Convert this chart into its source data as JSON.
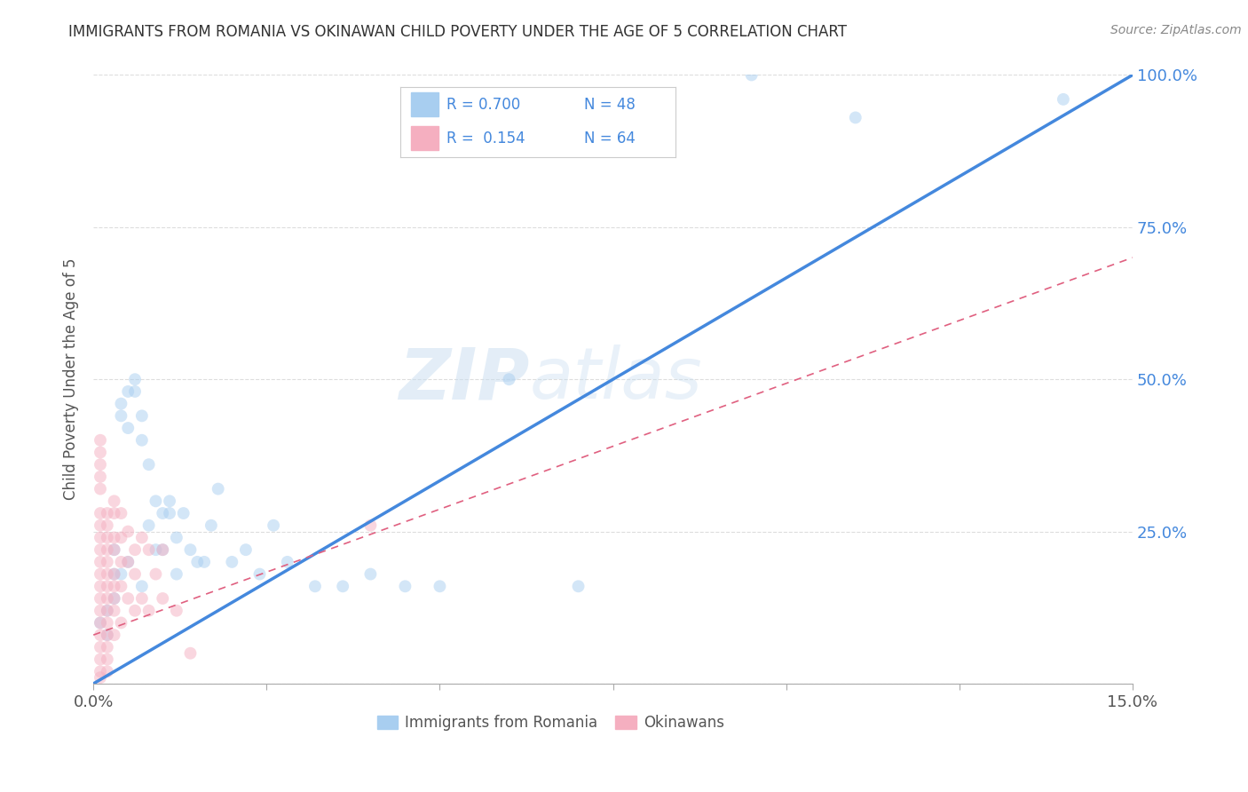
{
  "title": "IMMIGRANTS FROM ROMANIA VS OKINAWAN CHILD POVERTY UNDER THE AGE OF 5 CORRELATION CHART",
  "source": "Source: ZipAtlas.com",
  "ylabel": "Child Poverty Under the Age of 5",
  "legend_blue_label": "Immigrants from Romania",
  "legend_pink_label": "Okinawans",
  "legend_blue_R": "R = 0.700",
  "legend_blue_N": "N = 48",
  "legend_pink_R": "R =  0.154",
  "legend_pink_N": "N = 64",
  "blue_color": "#a8cef0",
  "pink_color": "#f5afc0",
  "blue_line_color": "#4488dd",
  "pink_line_color": "#e06080",
  "watermark_zip": "ZIP",
  "watermark_atlas": "atlas",
  "xlim": [
    0.0,
    0.15
  ],
  "ylim": [
    0.0,
    1.0
  ],
  "yticks": [
    0.0,
    0.25,
    0.5,
    0.75,
    1.0
  ],
  "ytick_labels": [
    "",
    "25.0%",
    "50.0%",
    "75.0%",
    "100.0%"
  ],
  "xtick_vals": [
    0.0,
    0.025,
    0.05,
    0.075,
    0.1,
    0.125,
    0.15
  ],
  "blue_scatter_x": [
    0.001,
    0.002,
    0.002,
    0.003,
    0.003,
    0.003,
    0.004,
    0.004,
    0.004,
    0.005,
    0.005,
    0.005,
    0.006,
    0.006,
    0.007,
    0.007,
    0.007,
    0.008,
    0.008,
    0.009,
    0.009,
    0.01,
    0.01,
    0.011,
    0.011,
    0.012,
    0.012,
    0.013,
    0.014,
    0.015,
    0.016,
    0.017,
    0.018,
    0.02,
    0.022,
    0.024,
    0.026,
    0.028,
    0.032,
    0.036,
    0.04,
    0.045,
    0.05,
    0.06,
    0.07,
    0.095,
    0.11,
    0.14
  ],
  "blue_scatter_y": [
    0.1,
    0.12,
    0.08,
    0.22,
    0.18,
    0.14,
    0.46,
    0.44,
    0.18,
    0.48,
    0.42,
    0.2,
    0.48,
    0.5,
    0.44,
    0.4,
    0.16,
    0.36,
    0.26,
    0.3,
    0.22,
    0.28,
    0.22,
    0.3,
    0.28,
    0.24,
    0.18,
    0.28,
    0.22,
    0.2,
    0.2,
    0.26,
    0.32,
    0.2,
    0.22,
    0.18,
    0.26,
    0.2,
    0.16,
    0.16,
    0.18,
    0.16,
    0.16,
    0.5,
    0.16,
    1.0,
    0.93,
    0.96
  ],
  "pink_scatter_x": [
    0.001,
    0.001,
    0.001,
    0.001,
    0.001,
    0.001,
    0.001,
    0.001,
    0.001,
    0.001,
    0.001,
    0.001,
    0.001,
    0.001,
    0.001,
    0.001,
    0.001,
    0.001,
    0.001,
    0.001,
    0.002,
    0.002,
    0.002,
    0.002,
    0.002,
    0.002,
    0.002,
    0.002,
    0.002,
    0.002,
    0.002,
    0.002,
    0.002,
    0.002,
    0.003,
    0.003,
    0.003,
    0.003,
    0.003,
    0.003,
    0.003,
    0.003,
    0.003,
    0.004,
    0.004,
    0.004,
    0.004,
    0.004,
    0.005,
    0.005,
    0.005,
    0.006,
    0.006,
    0.006,
    0.007,
    0.007,
    0.008,
    0.008,
    0.009,
    0.01,
    0.01,
    0.012,
    0.014,
    0.04
  ],
  "pink_scatter_y": [
    0.4,
    0.38,
    0.36,
    0.34,
    0.32,
    0.28,
    0.26,
    0.24,
    0.22,
    0.2,
    0.18,
    0.16,
    0.14,
    0.12,
    0.1,
    0.08,
    0.06,
    0.04,
    0.02,
    0.01,
    0.28,
    0.26,
    0.24,
    0.22,
    0.2,
    0.18,
    0.16,
    0.14,
    0.12,
    0.1,
    0.08,
    0.06,
    0.04,
    0.02,
    0.3,
    0.28,
    0.24,
    0.22,
    0.18,
    0.16,
    0.14,
    0.12,
    0.08,
    0.28,
    0.24,
    0.2,
    0.16,
    0.1,
    0.25,
    0.2,
    0.14,
    0.22,
    0.18,
    0.12,
    0.24,
    0.14,
    0.22,
    0.12,
    0.18,
    0.22,
    0.14,
    0.12,
    0.05,
    0.26
  ],
  "blue_trend_x": [
    0.0,
    0.15
  ],
  "blue_trend_y": [
    0.0,
    1.0
  ],
  "pink_trend_x": [
    0.0,
    0.15
  ],
  "pink_trend_y": [
    0.08,
    0.7
  ],
  "background_color": "#ffffff",
  "grid_color": "#dddddd",
  "title_color": "#333333",
  "right_axis_color": "#4488dd",
  "marker_size": 100,
  "marker_alpha": 0.5
}
